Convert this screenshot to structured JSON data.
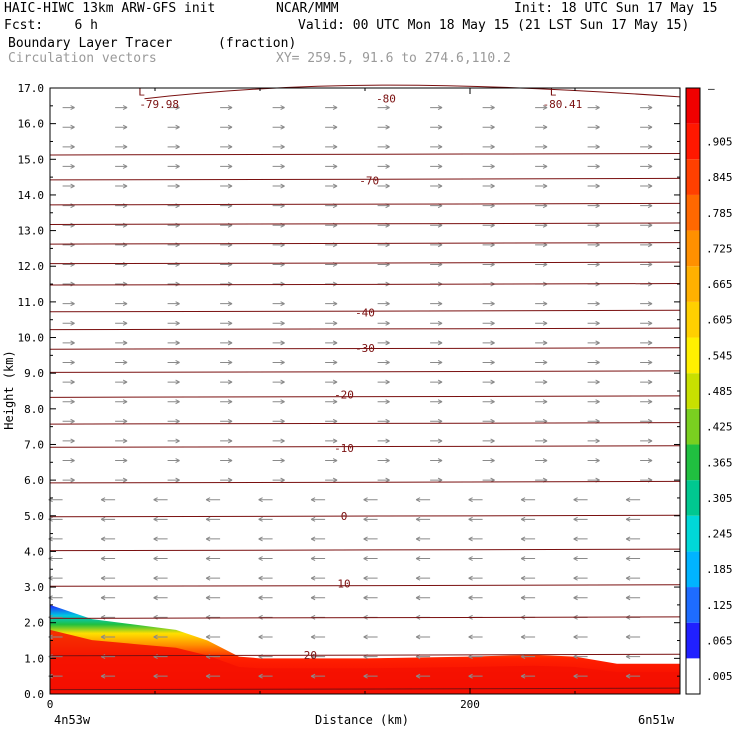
{
  "header": {
    "model": "HAIC-HIWC 13km ARW-GFS init",
    "org": "NCAR/MMM",
    "init": "Init: 18 UTC Sun 17 May 15",
    "fcst": "Fcst:    6 h",
    "valid": "Valid: 00 UTC Mon 18 May 15 (21 LST Sun 17 May 15)",
    "field1": "Boundary Layer Tracer",
    "field1_units": "(fraction)",
    "field2": "Circulation vectors",
    "xy": "XY= 259.5, 91.6 to 274.6,110.2"
  },
  "chart_data": {
    "type": "heatmap",
    "xlabel": "Distance (km)",
    "ylabel": "Height (km)",
    "xlim": [
      0,
      300
    ],
    "ylim": [
      0,
      17
    ],
    "x_ticks": [
      "0",
      "200"
    ],
    "y_ticks": [
      "0.0",
      "1.0",
      "2.0",
      "3.0",
      "4.0",
      "5.0",
      "6.0",
      "7.0",
      "8.0",
      "9.0",
      "10.0",
      "11.0",
      "12.0",
      "13.0",
      "14.0",
      "15.0",
      "16.0",
      "17.0"
    ],
    "left_endpoint": "4n53w",
    "right_endpoint": "6n51w",
    "colorbar": {
      "labels": [
        ".005",
        ".065",
        ".125",
        ".185",
        ".245",
        ".305",
        ".365",
        ".425",
        ".485",
        ".545",
        ".605",
        ".665",
        ".725",
        ".785",
        ".845",
        ".905"
      ],
      "top_label": "–",
      "colors": [
        "#ffffff",
        "#2020ff",
        "#1e6cff",
        "#00b4ff",
        "#00d8d8",
        "#00c890",
        "#20c040",
        "#7ad020",
        "#c8e000",
        "#fff000",
        "#ffd000",
        "#ffb000",
        "#ff9000",
        "#ff6800",
        "#ff4000",
        "#ff1800",
        "#f00000"
      ]
    },
    "tracer_top_km": [
      [
        0,
        2.5
      ],
      [
        20,
        2.1
      ],
      [
        40,
        1.95
      ],
      [
        60,
        1.8
      ],
      [
        75,
        1.5
      ],
      [
        90,
        1.05
      ],
      [
        100,
        1.0
      ],
      [
        150,
        1.0
      ],
      [
        200,
        1.05
      ],
      [
        230,
        1.1
      ],
      [
        250,
        1.05
      ],
      [
        270,
        0.85
      ],
      [
        300,
        0.85
      ]
    ],
    "temperature_contours": [
      {
        "label": "-80",
        "y": 16.7,
        "x": 80
      },
      {
        "label": "-79.98",
        "y": 16.55,
        "x": 26
      },
      {
        "label": "-80.41",
        "y": 16.55,
        "x": 122
      },
      {
        "label": "-70",
        "y": 14.4,
        "x": 76
      },
      {
        "label": "-40",
        "y": 10.7,
        "x": 75
      },
      {
        "label": "-30",
        "y": 9.7,
        "x": 75
      },
      {
        "label": "-20",
        "y": 8.4,
        "x": 70
      },
      {
        "label": "-10",
        "y": 6.9,
        "x": 70
      },
      {
        "label": "0",
        "y": 5.0,
        "x": 70
      },
      {
        "label": "10",
        "y": 3.1,
        "x": 70
      },
      {
        "label": "20",
        "y": 1.1,
        "x": 62
      }
    ],
    "contour_levels_km": [
      0.15,
      1.1,
      2.15,
      3.05,
      4.05,
      5.0,
      5.95,
      6.95,
      7.6,
      8.35,
      9.05,
      9.7,
      10.25,
      10.75,
      11.5,
      12.1,
      12.65,
      13.2,
      13.75,
      14.45,
      15.15
    ],
    "low_markers": [
      {
        "label": "L",
        "x": 21,
        "y": 16.9
      },
      {
        "label": "L",
        "x": 119,
        "y": 16.9
      }
    ],
    "vectors": {
      "description": "circulation vectors; westward (leftward) flow below ~6 km, eastward (rightward) flow aloft"
    }
  }
}
